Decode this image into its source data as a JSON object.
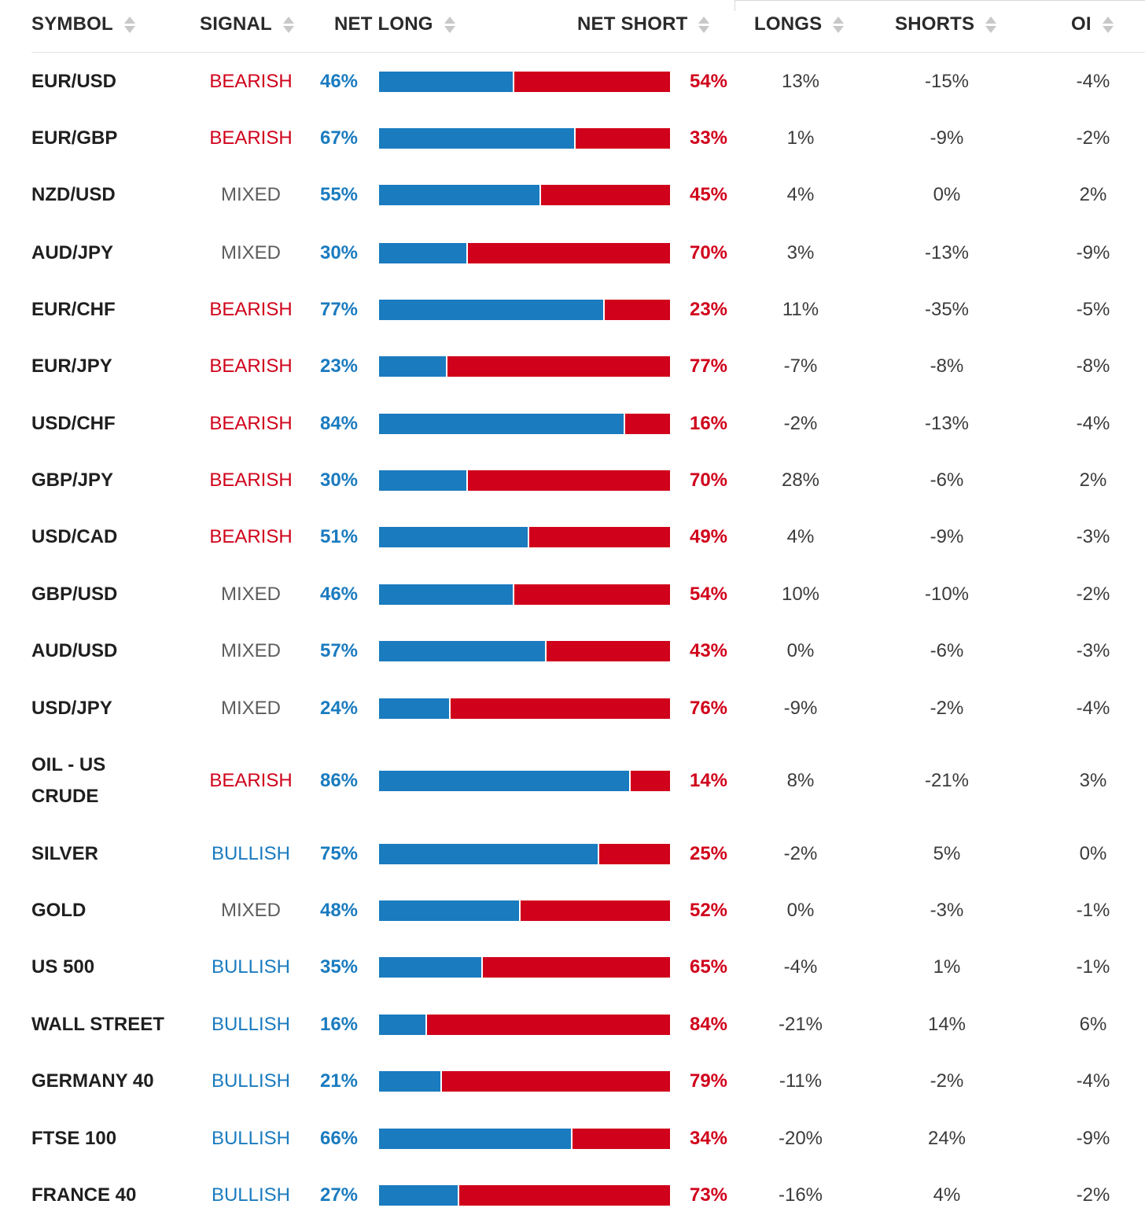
{
  "columns": {
    "symbol": "SYMBOL",
    "signal": "SIGNAL",
    "net_long": "NET LONG",
    "net_short": "NET SHORT",
    "longs": "LONGS",
    "shorts": "SHORTS",
    "oi": "OI"
  },
  "colors": {
    "long": "#1a7bbf",
    "short": "#d0021b",
    "mixed": "#5d5d5d"
  },
  "rows": [
    {
      "symbol": "EUR/USD",
      "signal": "BEARISH",
      "net_long": "46%",
      "net_short": "54%",
      "longs": "13%",
      "shorts": "-15%",
      "oi": "-4%",
      "long_pct": 46
    },
    {
      "symbol": "EUR/GBP",
      "signal": "BEARISH",
      "net_long": "67%",
      "net_short": "33%",
      "longs": "1%",
      "shorts": "-9%",
      "oi": "-2%",
      "long_pct": 67
    },
    {
      "symbol": "NZD/USD",
      "signal": "MIXED",
      "net_long": "55%",
      "net_short": "45%",
      "longs": "4%",
      "shorts": "0%",
      "oi": "2%",
      "long_pct": 55
    },
    {
      "symbol": "AUD/JPY",
      "signal": "MIXED",
      "net_long": "30%",
      "net_short": "70%",
      "longs": "3%",
      "shorts": "-13%",
      "oi": "-9%",
      "long_pct": 30
    },
    {
      "symbol": "EUR/CHF",
      "signal": "BEARISH",
      "net_long": "77%",
      "net_short": "23%",
      "longs": "11%",
      "shorts": "-35%",
      "oi": "-5%",
      "long_pct": 77
    },
    {
      "symbol": "EUR/JPY",
      "signal": "BEARISH",
      "net_long": "23%",
      "net_short": "77%",
      "longs": "-7%",
      "shorts": "-8%",
      "oi": "-8%",
      "long_pct": 23
    },
    {
      "symbol": "USD/CHF",
      "signal": "BEARISH",
      "net_long": "84%",
      "net_short": "16%",
      "longs": "-2%",
      "shorts": "-13%",
      "oi": "-4%",
      "long_pct": 84
    },
    {
      "symbol": "GBP/JPY",
      "signal": "BEARISH",
      "net_long": "30%",
      "net_short": "70%",
      "longs": "28%",
      "shorts": "-6%",
      "oi": "2%",
      "long_pct": 30
    },
    {
      "symbol": "USD/CAD",
      "signal": "BEARISH",
      "net_long": "51%",
      "net_short": "49%",
      "longs": "4%",
      "shorts": "-9%",
      "oi": "-3%",
      "long_pct": 51
    },
    {
      "symbol": "GBP/USD",
      "signal": "MIXED",
      "net_long": "46%",
      "net_short": "54%",
      "longs": "10%",
      "shorts": "-10%",
      "oi": "-2%",
      "long_pct": 46
    },
    {
      "symbol": "AUD/USD",
      "signal": "MIXED",
      "net_long": "57%",
      "net_short": "43%",
      "longs": "0%",
      "shorts": "-6%",
      "oi": "-3%",
      "long_pct": 57
    },
    {
      "symbol": "USD/JPY",
      "signal": "MIXED",
      "net_long": "24%",
      "net_short": "76%",
      "longs": "-9%",
      "shorts": "-2%",
      "oi": "-4%",
      "long_pct": 24
    },
    {
      "symbol": "OIL - US CRUDE",
      "signal": "BEARISH",
      "net_long": "86%",
      "net_short": "14%",
      "longs": "8%",
      "shorts": "-21%",
      "oi": "3%",
      "long_pct": 86
    },
    {
      "symbol": "SILVER",
      "signal": "BULLISH",
      "net_long": "75%",
      "net_short": "25%",
      "longs": "-2%",
      "shorts": "5%",
      "oi": "0%",
      "long_pct": 75
    },
    {
      "symbol": "GOLD",
      "signal": "MIXED",
      "net_long": "48%",
      "net_short": "52%",
      "longs": "0%",
      "shorts": "-3%",
      "oi": "-1%",
      "long_pct": 48
    },
    {
      "symbol": "US 500",
      "signal": "BULLISH",
      "net_long": "35%",
      "net_short": "65%",
      "longs": "-4%",
      "shorts": "1%",
      "oi": "-1%",
      "long_pct": 35
    },
    {
      "symbol": "WALL STREET",
      "signal": "BULLISH",
      "net_long": "16%",
      "net_short": "84%",
      "longs": "-21%",
      "shorts": "14%",
      "oi": "6%",
      "long_pct": 16
    },
    {
      "symbol": "GERMANY 40",
      "signal": "BULLISH",
      "net_long": "21%",
      "net_short": "79%",
      "longs": "-11%",
      "shorts": "-2%",
      "oi": "-4%",
      "long_pct": 21
    },
    {
      "symbol": "FTSE 100",
      "signal": "BULLISH",
      "net_long": "66%",
      "net_short": "34%",
      "longs": "-20%",
      "shorts": "24%",
      "oi": "-9%",
      "long_pct": 66
    },
    {
      "symbol": "FRANCE 40",
      "signal": "BULLISH",
      "net_long": "27%",
      "net_short": "73%",
      "longs": "-16%",
      "shorts": "4%",
      "oi": "-2%",
      "long_pct": 27
    }
  ]
}
